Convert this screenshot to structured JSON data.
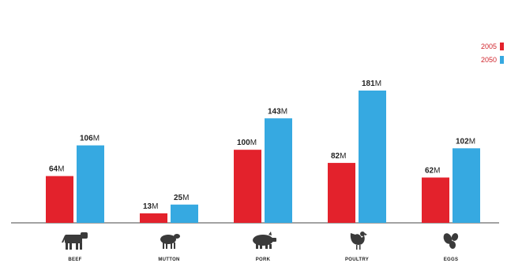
{
  "chart_data": {
    "type": "bar",
    "categories": [
      "BEEF",
      "MUTTON",
      "PORK",
      "POULTRY",
      "EGGS"
    ],
    "series": [
      {
        "name": "2005",
        "values": [
          64,
          13,
          100,
          82,
          62
        ],
        "labels": [
          "64",
          "13",
          "100",
          "82",
          "62"
        ],
        "color": "#e3222c"
      },
      {
        "name": "2050",
        "values": [
          106,
          25,
          143,
          181,
          102
        ],
        "labels": [
          "106",
          "25",
          "143",
          "181",
          "102"
        ],
        "color": "#36a9e1"
      }
    ],
    "value_unit": "M",
    "icons": [
      "cow-icon",
      "sheep-icon",
      "pig-icon",
      "chicken-icon",
      "eggs-icon"
    ],
    "ylim": [
      0,
      200
    ],
    "grid": false,
    "legend_position": "top-right"
  }
}
